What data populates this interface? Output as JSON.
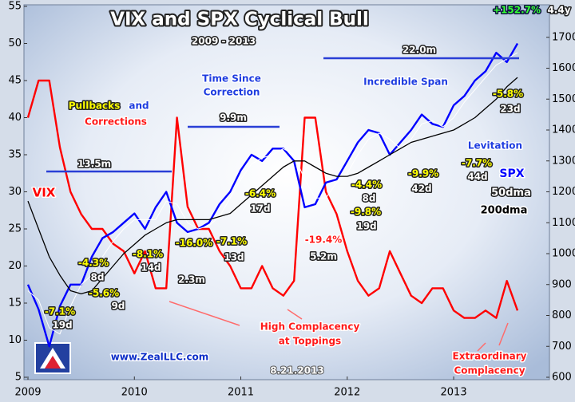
{
  "chart_data": {
    "type": "line",
    "title": "VIX and SPX Cyclical Bull",
    "subtitle": "2009 - 2013",
    "x": [
      2009.0,
      2009.1,
      2009.2,
      2009.3,
      2009.4,
      2009.5,
      2009.6,
      2009.7,
      2009.8,
      2009.9,
      2010.0,
      2010.1,
      2010.2,
      2010.3,
      2010.4,
      2010.5,
      2010.6,
      2010.7,
      2010.8,
      2010.9,
      2011.0,
      2011.1,
      2011.2,
      2011.3,
      2011.4,
      2011.5,
      2011.6,
      2011.7,
      2011.8,
      2011.9,
      2012.0,
      2012.1,
      2012.2,
      2012.3,
      2012.4,
      2012.5,
      2012.6,
      2012.7,
      2012.8,
      2012.9,
      2013.0,
      2013.1,
      2013.2,
      2013.3,
      2013.4,
      2013.5,
      2013.6
    ],
    "xlim": [
      2009,
      2013.9
    ],
    "xticks": [
      2009,
      2010,
      2011,
      2012,
      2013
    ],
    "ylim": [
      5,
      55
    ],
    "yticks": [
      5,
      10,
      15,
      20,
      25,
      30,
      35,
      40,
      45,
      50,
      55
    ],
    "y2lim": [
      600,
      1800
    ],
    "y2ticks": [
      600,
      700,
      800,
      900,
      1000,
      1100,
      1200,
      1300,
      1400,
      1500,
      1600,
      1700
    ],
    "series": [
      {
        "name": "VIX",
        "color": "#ff0000",
        "values": [
          40,
          45,
          45,
          36,
          30,
          27,
          25,
          25,
          23,
          22,
          19,
          22,
          17,
          17,
          40,
          28,
          25,
          25,
          22,
          20,
          17,
          17,
          20,
          17,
          16,
          18,
          40,
          40,
          30,
          27,
          22,
          18,
          16,
          17,
          22,
          19,
          16,
          15,
          17,
          17,
          14,
          13,
          13,
          14,
          13,
          18,
          14
        ]
      },
      {
        "name": "SPX",
        "color": "#0000ff",
        "axis": "y2",
        "values": [
          900,
          820,
          700,
          830,
          900,
          900,
          990,
          1050,
          1070,
          1100,
          1130,
          1080,
          1150,
          1200,
          1100,
          1070,
          1080,
          1100,
          1160,
          1200,
          1270,
          1320,
          1300,
          1340,
          1340,
          1300,
          1150,
          1160,
          1230,
          1240,
          1300,
          1360,
          1400,
          1390,
          1320,
          1360,
          1400,
          1450,
          1420,
          1410,
          1480,
          1510,
          1560,
          1590,
          1650,
          1620,
          1680
        ]
      },
      {
        "name": "50dma",
        "color": "#ffffff",
        "axis": "y2",
        "values": [
          880,
          850,
          760,
          740,
          830,
          900,
          930,
          990,
          1040,
          1080,
          1110,
          1110,
          1110,
          1170,
          1160,
          1100,
          1080,
          1090,
          1120,
          1180,
          1240,
          1290,
          1310,
          1320,
          1340,
          1320,
          1240,
          1180,
          1180,
          1230,
          1260,
          1320,
          1370,
          1390,
          1370,
          1340,
          1370,
          1420,
          1430,
          1410,
          1440,
          1490,
          1530,
          1570,
          1610,
          1630,
          1650
        ]
      },
      {
        "name": "200dma",
        "color": "#000000",
        "axis": "y2",
        "values": [
          1170,
          1080,
          990,
          930,
          880,
          870,
          880,
          920,
          960,
          1000,
          1030,
          1060,
          1080,
          1100,
          1110,
          1110,
          1110,
          1110,
          1120,
          1130,
          1160,
          1190,
          1220,
          1250,
          1280,
          1300,
          1300,
          1280,
          1260,
          1250,
          1250,
          1260,
          1280,
          1300,
          1320,
          1340,
          1360,
          1370,
          1380,
          1390,
          1400,
          1420,
          1440,
          1470,
          1500,
          1540,
          1570
        ]
      }
    ],
    "annotations": [
      "+152.7%",
      "4.4y",
      "Pullbacks",
      "and",
      "Corrections",
      "Time Since",
      "Correction",
      "9.9m",
      "13.5m",
      "22.0m",
      "Incredible Span",
      "Levitation",
      "-7.1%",
      "19d",
      "-5.6%",
      "9d",
      "-4.3%",
      "8d",
      "-8.1%",
      "14d",
      "-16.0%",
      "2.3m",
      "-7.1%",
      "13d",
      "-6.4%",
      "17d",
      "-19.4%",
      "5.2m",
      "-4.4%",
      "8d",
      "-9.8%",
      "19d",
      "-9.9%",
      "42d",
      "-7.7%",
      "44d",
      "-5.8%",
      "23d",
      "High Complacency",
      "at Toppings",
      "Extraordinary",
      "Complacency",
      "www.ZealLLC.com",
      "8.21.2013"
    ]
  }
}
